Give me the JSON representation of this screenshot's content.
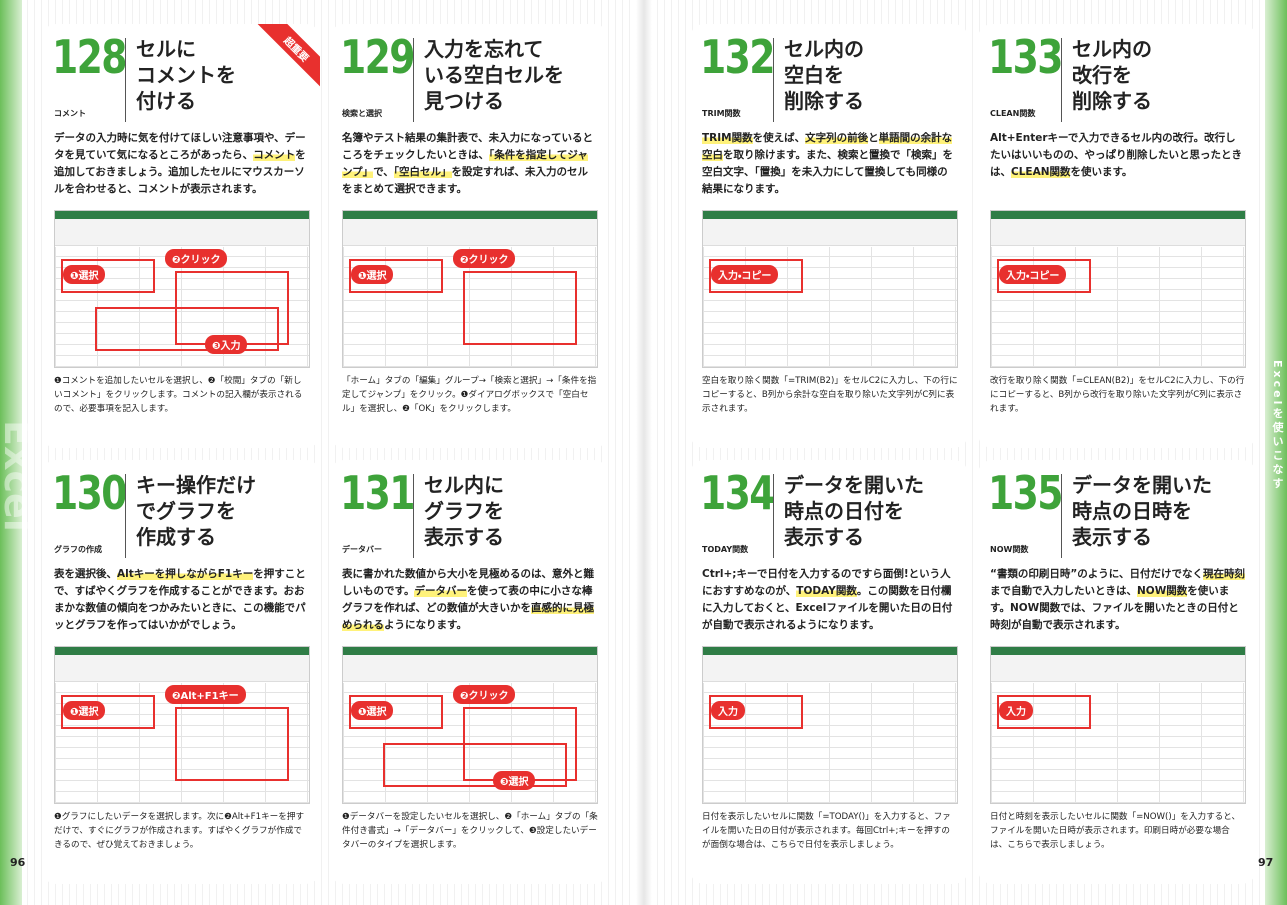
{
  "side_label": "Excelを使いこなす",
  "side_watermark": "Excel",
  "pages": [
    {
      "number": "96",
      "cards": [
        {
          "number": "128",
          "category": "コメント",
          "badge": "超重要",
          "title": [
            "セルに",
            "コメントを",
            "付ける"
          ],
          "body": [
            "データの入力時に気を付けてほしい注意事項や、データを見ていて気になるところがあったら、",
            [
              "コメント"
            ],
            "を追加しておきましょう。追加したセルにマウスカーソルを合わせると、コメントが表示されます。"
          ],
          "callouts": [
            "❶選択",
            "❷クリック",
            "❸入力"
          ],
          "caption": "❶コメントを追加したいセルを選択し、❷「校閲」タブの「新しいコメント」をクリックします。コメントの記入欄が表示されるので、必要事項を記入します。"
        },
        {
          "number": "129",
          "category": "検索と選択",
          "title": [
            "入力を忘れて",
            "いる空白セルを",
            "見つける"
          ],
          "body": [
            "名簿やテスト結果の集計表で、未入力になっているところをチェックしたいときは、",
            [
              "「条件を指定してジャンプ」"
            ],
            "で、",
            [
              "「空白セル」"
            ],
            "を設定すれば、未入力のセルをまとめて選択できます。"
          ],
          "callouts": [
            "❶選択",
            "❷クリック"
          ],
          "caption": "「ホーム」タブの「編集」グループ→「検索と選択」→「条件を指定してジャンプ」をクリック。❶ダイアログボックスで「空白セル」を選択し、❷「OK」をクリックします。"
        },
        {
          "number": "130",
          "category": "グラフの作成",
          "title": [
            "キー操作だけ",
            "でグラフを",
            "作成する"
          ],
          "body": [
            "表を選択後、",
            [
              "Altキーを押しながらF1キー"
            ],
            "を押すことで、すばやくグラフを作成することができます。おおまかな数値の傾向をつかみたいときに、この機能でパッとグラフを作ってはいかがでしょう。"
          ],
          "callouts": [
            "❶選択",
            "❷Alt+F1キー"
          ],
          "caption": "❶グラフにしたいデータを選択します。次に❷Alt+F1キーを押すだけで、すぐにグラフが作成されます。すばやくグラフが作成できるので、ぜひ覚えておきましょう。"
        },
        {
          "number": "131",
          "category": "データバー",
          "title": [
            "セル内に",
            "グラフを",
            "表示する"
          ],
          "body": [
            "表に書かれた数値から大小を見極めるのは、意外と難しいものです。",
            [
              "データバー"
            ],
            "を使って表の中に小さな棒グラフを作れば、どの数値が大きいかを",
            [
              "直感的に見極められる"
            ],
            "ようになります。"
          ],
          "callouts": [
            "❶選択",
            "❷クリック",
            "❸選択"
          ],
          "caption": "❶データバーを設定したいセルを選択し、❷「ホーム」タブの「条件付き書式」→「データバー」をクリックして、❸設定したいデータバーのタイプを選択します。"
        }
      ]
    },
    {
      "number": "97",
      "cards": [
        {
          "number": "132",
          "category": "TRIM関数",
          "title": [
            "セル内の",
            "空白を",
            "削除する"
          ],
          "body": [
            [
              "TRIM関数"
            ],
            "を使えば、",
            [
              "文字列の前後"
            ],
            "と",
            [
              "単語間の余計な空白"
            ],
            "を取り除けます。また、検索と置換で「検索」を空白文字、「置換」を未入力にして置換しても同様の結果になります。"
          ],
          "callouts": [
            "入力・コピー"
          ],
          "caption": "空白を取り除く関数「=TRIM(B2)」をセルC2に入力し、下の行にコピーすると、B列から余計な空白を取り除いた文字列がC列に表示されます。"
        },
        {
          "number": "133",
          "category": "CLEAN関数",
          "title": [
            "セル内の",
            "改行を",
            "削除する"
          ],
          "body": [
            "Alt+Enterキーで入力できるセル内の改行。改行したいはいいものの、やっぱり削除したいと思ったときは、",
            [
              "CLEAN関数"
            ],
            "を使います。"
          ],
          "callouts": [
            "入力・コピー"
          ],
          "caption": "改行を取り除く関数「=CLEAN(B2)」をセルC2に入力し、下の行にコピーすると、B列から改行を取り除いた文字列がC列に表示されます。"
        },
        {
          "number": "134",
          "category": "TODAY関数",
          "title": [
            "データを開いた",
            "時点の日付を",
            "表示する"
          ],
          "body": [
            "Ctrl+;キーで日付を入力するのですら面倒!という人におすすめなのが、",
            [
              "TODAY関数"
            ],
            "。この関数を日付欄に入力しておくと、Excelファイルを開いた日の日付が自動で表示されるようになります。"
          ],
          "callouts": [
            "入力"
          ],
          "caption": "日付を表示したいセルに関数「=TODAY()」を入力すると、ファイルを開いた日の日付が表示されます。毎回Ctrl+;キーを押すのが面倒な場合は、こちらで日付を表示しましょう。"
        },
        {
          "number": "135",
          "category": "NOW関数",
          "title": [
            "データを開いた",
            "時点の日時を",
            "表示する"
          ],
          "body": [
            "“書類の印刷日時”のように、日付だけでなく",
            [
              "現在時刻"
            ],
            "まで自動で入力したいときは、",
            [
              "NOW関数"
            ],
            "を使います。NOW関数では、ファイルを開いたときの日付と時刻が自動で表示されます。"
          ],
          "callouts": [
            "入力"
          ],
          "caption": "日付と時刻を表示したいセルに関数「=NOW()」を入力すると、ファイルを開いた日時が表示されます。印刷日時が必要な場合は、こちらで表示しましょう。"
        }
      ]
    }
  ]
}
